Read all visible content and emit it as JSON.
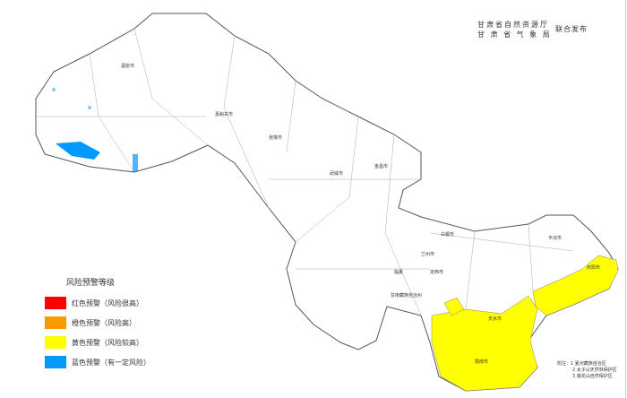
{
  "publisher": {
    "line1": "甘肃省自然资源厅",
    "line2": "甘 肃 省 气 象 局",
    "joint": "联合发布"
  },
  "legend": {
    "title": "风险预警等级",
    "items": [
      {
        "label": "红色预警（风险很高）",
        "color": "#ff0000"
      },
      {
        "label": "橙色预警（风险高）",
        "color": "#ff9900"
      },
      {
        "label": "黄色预警（风险较高）",
        "color": "#ffff00"
      },
      {
        "label": "蓝色预警（有一定风险）",
        "color": "#0099ff"
      }
    ]
  },
  "notes": {
    "prefix": "附注：",
    "items": [
      "1 夏河藏族自治区",
      "2 太子山天然林保护区",
      "3 莲花山自然保护区"
    ]
  },
  "cities": [
    {
      "name": "嘉峪关市"
    },
    {
      "name": "金昌市"
    },
    {
      "name": "武威市"
    },
    {
      "name": "白银市"
    },
    {
      "name": "兰州市"
    },
    {
      "name": "定西市"
    },
    {
      "name": "临夏"
    },
    {
      "name": "甘南藏族自治州"
    },
    {
      "name": "天水市"
    },
    {
      "name": "平凉市"
    },
    {
      "name": "庆阳市"
    },
    {
      "name": "陇南市"
    },
    {
      "name": "酒泉市"
    },
    {
      "name": "张掖市"
    }
  ],
  "warning_region_color": "#ffff00",
  "lake_color": "#0099ff"
}
